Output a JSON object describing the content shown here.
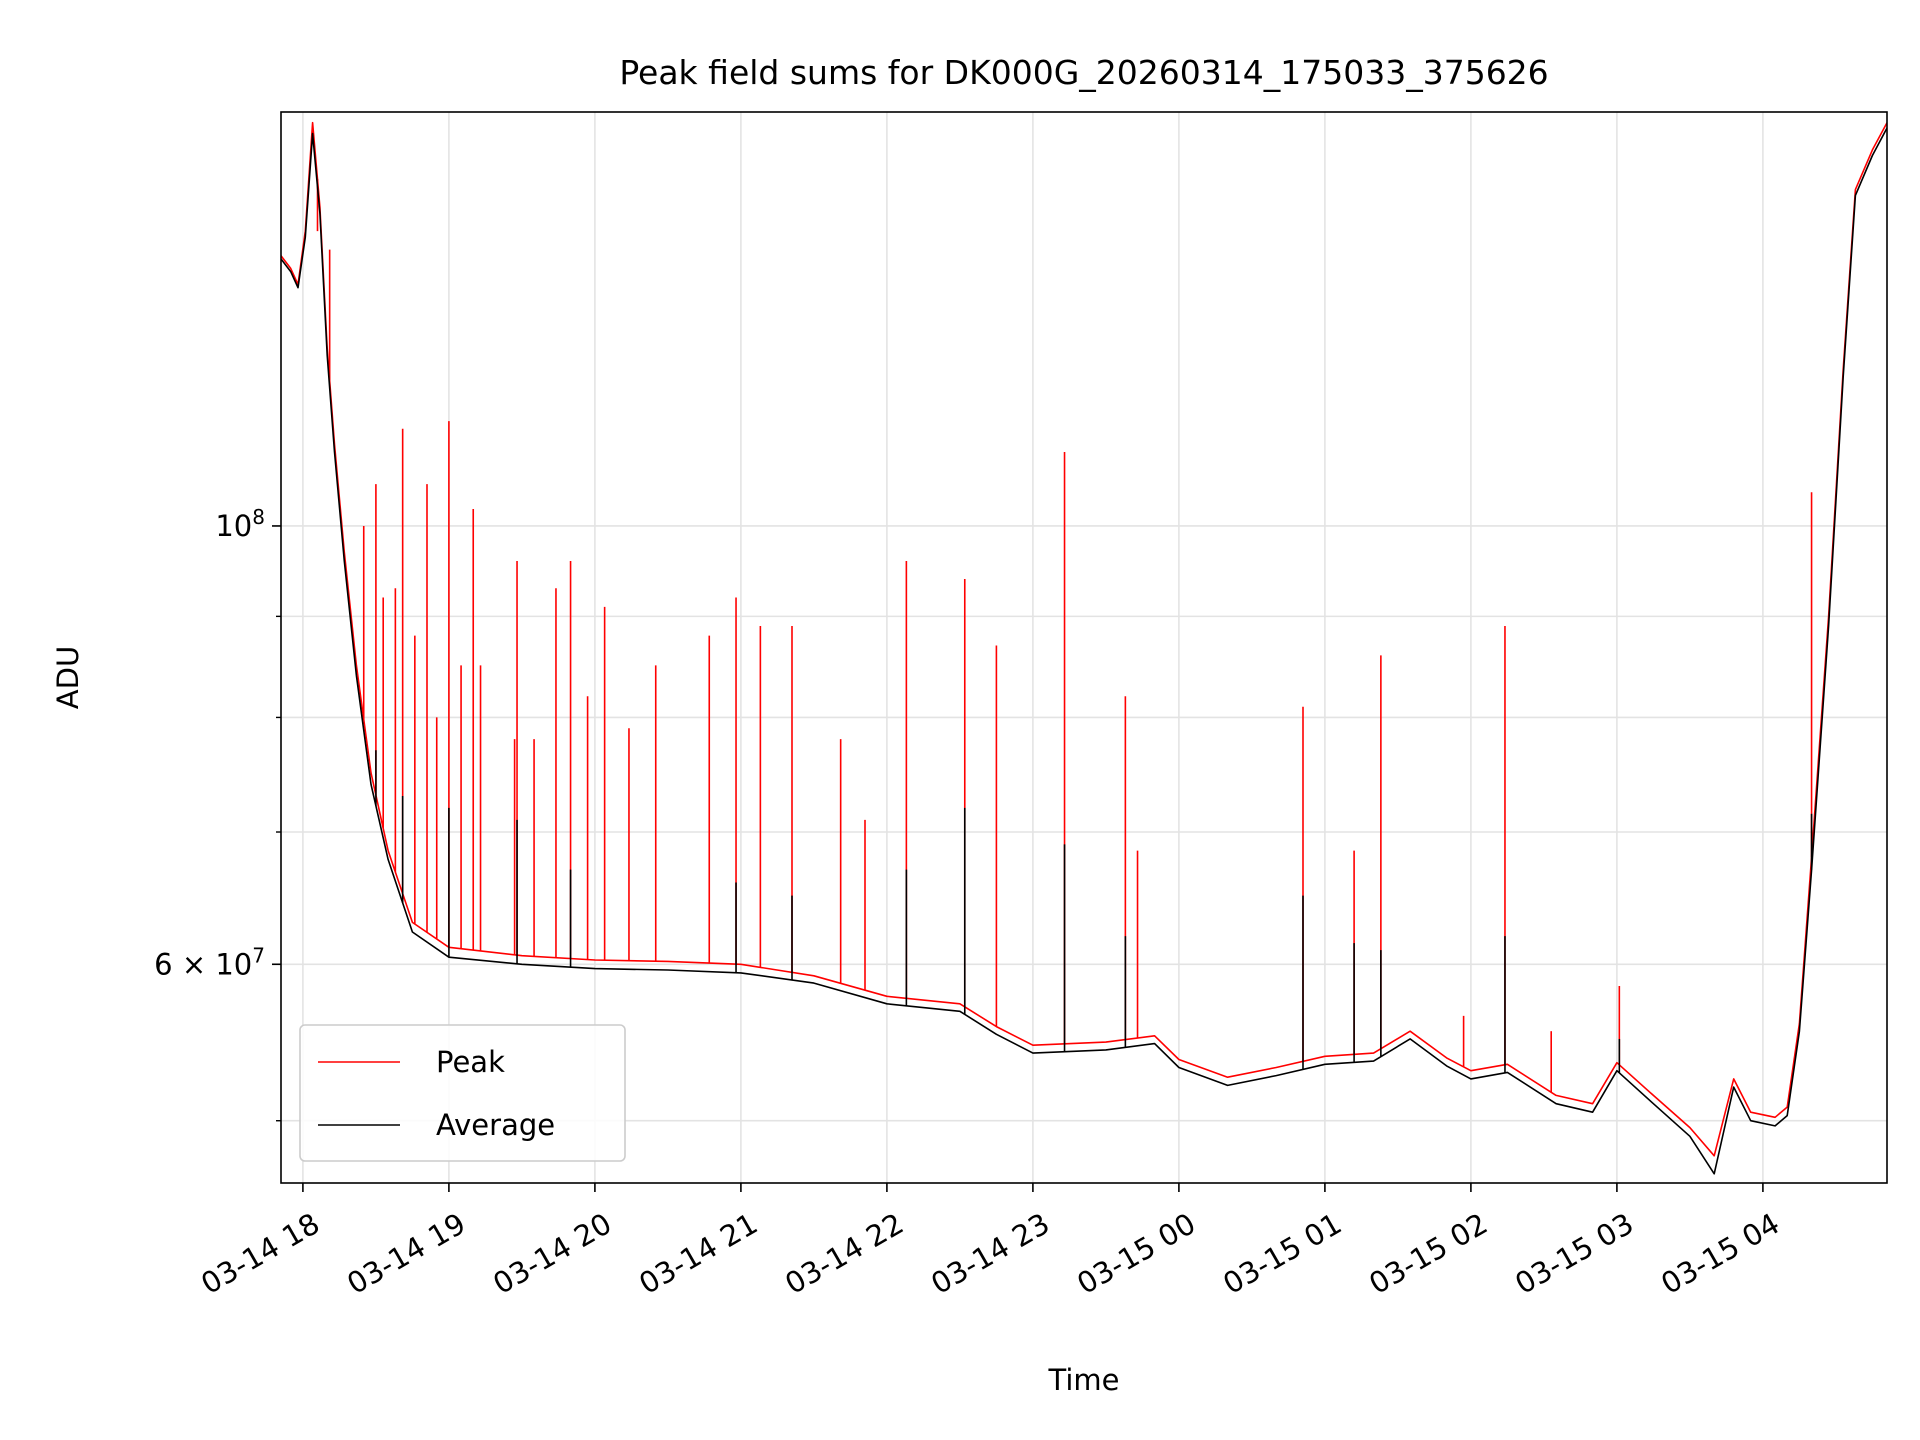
{
  "chart_data": {
    "type": "line",
    "title": "Peak field sums for DK000G_20260314_175033_375626",
    "xlabel": "Time",
    "ylabel": "ADU",
    "yscale": "log",
    "grid": true,
    "legend_position": "lower-left",
    "x_range": [
      "2026-03-14 17:51",
      "2026-03-15 04:51"
    ],
    "ylim": [
      46500000,
      162000000
    ],
    "x_ticks": [
      {
        "label": "03-14 18",
        "time": "2026-03-14 18:00"
      },
      {
        "label": "03-14 19",
        "time": "2026-03-14 19:00"
      },
      {
        "label": "03-14 20",
        "time": "2026-03-14 20:00"
      },
      {
        "label": "03-14 21",
        "time": "2026-03-14 21:00"
      },
      {
        "label": "03-14 22",
        "time": "2026-03-14 22:00"
      },
      {
        "label": "03-14 23",
        "time": "2026-03-14 23:00"
      },
      {
        "label": "03-15 00",
        "time": "2026-03-15 00:00"
      },
      {
        "label": "03-15 01",
        "time": "2026-03-15 01:00"
      },
      {
        "label": "03-15 02",
        "time": "2026-03-15 02:00"
      },
      {
        "label": "03-15 03",
        "time": "2026-03-15 03:00"
      },
      {
        "label": "03-15 04",
        "time": "2026-03-15 04:00"
      }
    ],
    "y_major_ticks": [
      {
        "label_base": "10",
        "label_exp": "8",
        "value": 100000000
      },
      {
        "label_base": "6 × 10",
        "label_exp": "7",
        "value": 60000000
      }
    ],
    "y_minor_ticks": [
      50000000,
      70000000,
      80000000,
      90000000
    ],
    "series": [
      {
        "name": "Peak",
        "color": "#ff0000",
        "points": [
          [
            "2026-03-14 17:51",
            137000000
          ],
          [
            "2026-03-14 17:55",
            135000000
          ],
          [
            "2026-03-14 17:58",
            132500000
          ],
          [
            "2026-03-14 18:01",
            141000000
          ],
          [
            "2026-03-14 18:04",
            160000000
          ],
          [
            "2026-03-14 18:07",
            145000000
          ],
          [
            "2026-03-14 18:10",
            123000000
          ],
          [
            "2026-03-14 18:13",
            110000000
          ],
          [
            "2026-03-14 18:17",
            97000000
          ],
          [
            "2026-03-14 18:22",
            85000000
          ],
          [
            "2026-03-14 18:28",
            75000000
          ],
          [
            "2026-03-14 18:35",
            68500000
          ],
          [
            "2026-03-14 18:45",
            63000000
          ],
          [
            "2026-03-14 19:00",
            61200000
          ],
          [
            "2026-03-14 19:30",
            60600000
          ],
          [
            "2026-03-14 20:00",
            60300000
          ],
          [
            "2026-03-14 20:30",
            60200000
          ],
          [
            "2026-03-14 21:00",
            60000000
          ],
          [
            "2026-03-14 21:30",
            59200000
          ],
          [
            "2026-03-14 22:00",
            57800000
          ],
          [
            "2026-03-14 22:30",
            57300000
          ],
          [
            "2026-03-14 22:45",
            55800000
          ],
          [
            "2026-03-14 23:00",
            54600000
          ],
          [
            "2026-03-14 23:30",
            54800000
          ],
          [
            "2026-03-14 23:50",
            55200000
          ],
          [
            "2026-03-15 00:00",
            53700000
          ],
          [
            "2026-03-15 00:20",
            52600000
          ],
          [
            "2026-03-15 00:40",
            53200000
          ],
          [
            "2026-03-15 01:00",
            53900000
          ],
          [
            "2026-03-15 01:20",
            54100000
          ],
          [
            "2026-03-15 01:35",
            55500000
          ],
          [
            "2026-03-15 01:50",
            53800000
          ],
          [
            "2026-03-15 02:00",
            53000000
          ],
          [
            "2026-03-15 02:15",
            53400000
          ],
          [
            "2026-03-15 02:35",
            51500000
          ],
          [
            "2026-03-15 02:50",
            51000000
          ],
          [
            "2026-03-15 03:00",
            53500000
          ],
          [
            "2026-03-15 03:15",
            51500000
          ],
          [
            "2026-03-15 03:30",
            49600000
          ],
          [
            "2026-03-15 03:40",
            48000000
          ],
          [
            "2026-03-15 03:48",
            52500000
          ],
          [
            "2026-03-15 03:55",
            50500000
          ],
          [
            "2026-03-15 04:05",
            50200000
          ],
          [
            "2026-03-15 04:10",
            50800000
          ],
          [
            "2026-03-15 04:15",
            56000000
          ],
          [
            "2026-03-15 04:20",
            68000000
          ],
          [
            "2026-03-15 04:27",
            90000000
          ],
          [
            "2026-03-15 04:33",
            120000000
          ],
          [
            "2026-03-15 04:38",
            148000000
          ],
          [
            "2026-03-15 04:45",
            155000000
          ],
          [
            "2026-03-15 04:51",
            160000000
          ]
        ],
        "spikes": [
          [
            "2026-03-14 18:06",
            141000000
          ],
          [
            "2026-03-14 18:11",
            138000000
          ],
          [
            "2026-03-14 18:25",
            100000000
          ],
          [
            "2026-03-14 18:30",
            105000000
          ],
          [
            "2026-03-14 18:33",
            92000000
          ],
          [
            "2026-03-14 18:38",
            93000000
          ],
          [
            "2026-03-14 18:41",
            112000000
          ],
          [
            "2026-03-14 18:46",
            88000000
          ],
          [
            "2026-03-14 18:51",
            105000000
          ],
          [
            "2026-03-14 18:55",
            80000000
          ],
          [
            "2026-03-14 19:00",
            113000000
          ],
          [
            "2026-03-14 19:05",
            85000000
          ],
          [
            "2026-03-14 19:10",
            102000000
          ],
          [
            "2026-03-14 19:13",
            85000000
          ],
          [
            "2026-03-14 19:27",
            78000000
          ],
          [
            "2026-03-14 19:28",
            96000000
          ],
          [
            "2026-03-14 19:35",
            78000000
          ],
          [
            "2026-03-14 19:44",
            93000000
          ],
          [
            "2026-03-14 19:50",
            96000000
          ],
          [
            "2026-03-14 19:57",
            82000000
          ],
          [
            "2026-03-14 20:04",
            91000000
          ],
          [
            "2026-03-14 20:14",
            79000000
          ],
          [
            "2026-03-14 20:25",
            85000000
          ],
          [
            "2026-03-14 20:47",
            88000000
          ],
          [
            "2026-03-14 20:58",
            92000000
          ],
          [
            "2026-03-14 21:08",
            89000000
          ],
          [
            "2026-03-14 21:21",
            89000000
          ],
          [
            "2026-03-14 21:41",
            78000000
          ],
          [
            "2026-03-14 21:51",
            71000000
          ],
          [
            "2026-03-14 22:08",
            96000000
          ],
          [
            "2026-03-14 22:32",
            94000000
          ],
          [
            "2026-03-14 22:45",
            87000000
          ],
          [
            "2026-03-14 23:13",
            109000000
          ],
          [
            "2026-03-14 23:38",
            82000000
          ],
          [
            "2026-03-14 23:43",
            68500000
          ],
          [
            "2026-03-15 00:51",
            81000000
          ],
          [
            "2026-03-15 01:12",
            68500000
          ],
          [
            "2026-03-15 01:23",
            86000000
          ],
          [
            "2026-03-15 01:57",
            56500000
          ],
          [
            "2026-03-15 02:14",
            89000000
          ],
          [
            "2026-03-15 02:33",
            55500000
          ],
          [
            "2026-03-15 03:01",
            58500000
          ],
          [
            "2026-03-15 04:20",
            104000000
          ]
        ]
      },
      {
        "name": "Average",
        "color": "#000000",
        "points": [
          [
            "2026-03-14 17:51",
            136500000
          ],
          [
            "2026-03-14 17:55",
            134500000
          ],
          [
            "2026-03-14 17:58",
            132000000
          ],
          [
            "2026-03-14 18:01",
            140000000
          ],
          [
            "2026-03-14 18:04",
            158000000
          ],
          [
            "2026-03-14 18:07",
            144000000
          ],
          [
            "2026-03-14 18:10",
            122000000
          ],
          [
            "2026-03-14 18:13",
            109000000
          ],
          [
            "2026-03-14 18:17",
            96000000
          ],
          [
            "2026-03-14 18:22",
            84000000
          ],
          [
            "2026-03-14 18:28",
            74000000
          ],
          [
            "2026-03-14 18:35",
            67800000
          ],
          [
            "2026-03-14 18:45",
            62300000
          ],
          [
            "2026-03-14 19:00",
            60500000
          ],
          [
            "2026-03-14 19:30",
            60000000
          ],
          [
            "2026-03-14 20:00",
            59700000
          ],
          [
            "2026-03-14 20:30",
            59600000
          ],
          [
            "2026-03-14 21:00",
            59400000
          ],
          [
            "2026-03-14 21:30",
            58700000
          ],
          [
            "2026-03-14 22:00",
            57300000
          ],
          [
            "2026-03-14 22:30",
            56800000
          ],
          [
            "2026-03-14 22:45",
            55300000
          ],
          [
            "2026-03-14 23:00",
            54100000
          ],
          [
            "2026-03-14 23:30",
            54300000
          ],
          [
            "2026-03-14 23:50",
            54700000
          ],
          [
            "2026-03-15 00:00",
            53200000
          ],
          [
            "2026-03-15 00:20",
            52100000
          ],
          [
            "2026-03-15 00:40",
            52700000
          ],
          [
            "2026-03-15 01:00",
            53400000
          ],
          [
            "2026-03-15 01:20",
            53600000
          ],
          [
            "2026-03-15 01:35",
            55000000
          ],
          [
            "2026-03-15 01:50",
            53300000
          ],
          [
            "2026-03-15 02:00",
            52500000
          ],
          [
            "2026-03-15 02:15",
            52900000
          ],
          [
            "2026-03-15 02:35",
            51000000
          ],
          [
            "2026-03-15 02:50",
            50500000
          ],
          [
            "2026-03-15 03:00",
            53000000
          ],
          [
            "2026-03-15 03:15",
            51000000
          ],
          [
            "2026-03-15 03:30",
            49100000
          ],
          [
            "2026-03-15 03:40",
            47000000
          ],
          [
            "2026-03-15 03:48",
            52000000
          ],
          [
            "2026-03-15 03:55",
            50000000
          ],
          [
            "2026-03-15 04:05",
            49700000
          ],
          [
            "2026-03-15 04:10",
            50300000
          ],
          [
            "2026-03-15 04:15",
            55500000
          ],
          [
            "2026-03-15 04:20",
            67000000
          ],
          [
            "2026-03-15 04:27",
            89000000
          ],
          [
            "2026-03-15 04:33",
            119000000
          ],
          [
            "2026-03-15 04:38",
            147000000
          ],
          [
            "2026-03-15 04:45",
            154000000
          ],
          [
            "2026-03-15 04:51",
            159000000
          ]
        ],
        "spikes": [
          [
            "2026-03-14 18:30",
            77000000
          ],
          [
            "2026-03-14 18:41",
            73000000
          ],
          [
            "2026-03-14 19:00",
            72000000
          ],
          [
            "2026-03-14 19:28",
            71000000
          ],
          [
            "2026-03-14 19:50",
            67000000
          ],
          [
            "2026-03-14 20:58",
            66000000
          ],
          [
            "2026-03-14 21:21",
            65000000
          ],
          [
            "2026-03-14 22:08",
            67000000
          ],
          [
            "2026-03-14 22:32",
            72000000
          ],
          [
            "2026-03-14 23:13",
            69000000
          ],
          [
            "2026-03-14 23:38",
            62000000
          ],
          [
            "2026-03-15 00:51",
            65000000
          ],
          [
            "2026-03-15 01:12",
            61500000
          ],
          [
            "2026-03-15 01:23",
            61000000
          ],
          [
            "2026-03-15 02:14",
            62000000
          ],
          [
            "2026-03-15 03:01",
            55000000
          ],
          [
            "2026-03-15 04:20",
            71500000
          ]
        ]
      }
    ]
  }
}
